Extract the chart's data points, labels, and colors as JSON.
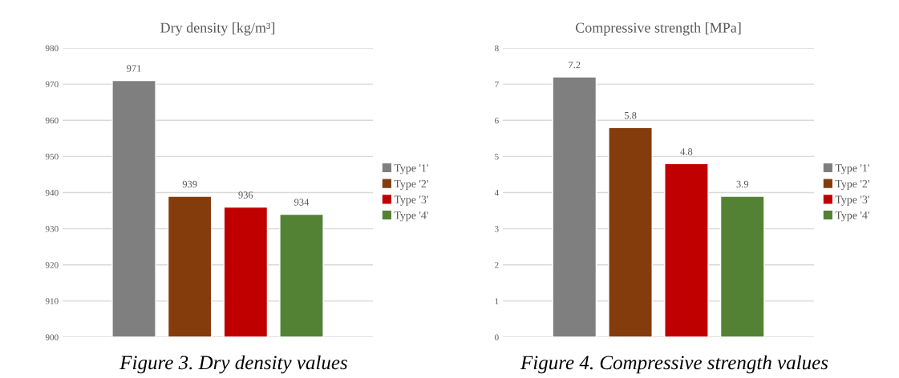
{
  "chart_data": [
    {
      "type": "bar",
      "title": "Dry density [kg/m³]",
      "categories": [
        null
      ],
      "series": [
        {
          "name": "Type '1'",
          "color": "#7f7f7f",
          "values": [
            971
          ]
        },
        {
          "name": "Type '2'",
          "color": "#843c0c",
          "values": [
            939
          ]
        },
        {
          "name": "Type '3'",
          "color": "#c00000",
          "values": [
            936
          ]
        },
        {
          "name": "Type '4'",
          "color": "#548235",
          "values": [
            934
          ]
        }
      ],
      "ylim": [
        900,
        980
      ],
      "yticks": [
        900,
        910,
        920,
        930,
        940,
        950,
        960,
        970,
        980
      ],
      "grid": "y",
      "legend": "right",
      "data_labels": true,
      "annotations": [
        "Figure 3. Dry density values"
      ]
    },
    {
      "type": "bar",
      "title": "Compressive strength [MPa]",
      "categories": [
        null
      ],
      "series": [
        {
          "name": "Type '1'",
          "color": "#7f7f7f",
          "values": [
            7.2
          ]
        },
        {
          "name": "Type '2'",
          "color": "#843c0c",
          "values": [
            5.8
          ]
        },
        {
          "name": "Type '3'",
          "color": "#c00000",
          "values": [
            4.8
          ]
        },
        {
          "name": "Type '4'",
          "color": "#548235",
          "values": [
            3.9
          ]
        }
      ],
      "ylim": [
        0,
        8
      ],
      "yticks": [
        0,
        1,
        2,
        3,
        4,
        5,
        6,
        7,
        8
      ],
      "grid": "y",
      "legend": "right",
      "data_labels": true,
      "annotations": [
        "Figure 4. Compressive strength values"
      ]
    }
  ]
}
